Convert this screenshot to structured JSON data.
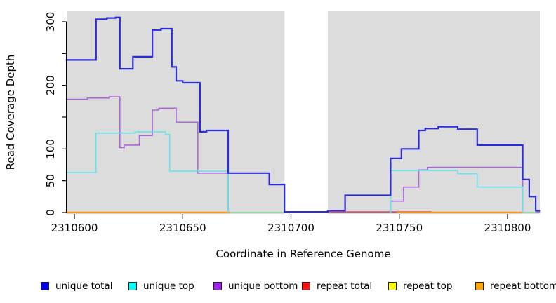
{
  "figure": {
    "x_axis_title": "Coordinate in Reference Genome",
    "y_axis_title": "Read Coverage Depth"
  },
  "chart_data": {
    "type": "line",
    "subtype": "step-function-coverage-plot",
    "title": "",
    "xlabel": "Coordinate in Reference Genome",
    "ylabel": "Read Coverage Depth",
    "xlim": [
      2310596,
      2310816
    ],
    "ylim": [
      0,
      318
    ],
    "grid": false,
    "panel_bg": "#dcdcdc",
    "axis_color": "#000000",
    "x_ticks": [
      2310600,
      2310650,
      2310700,
      2310750,
      2310800
    ],
    "x_tick_labels": [
      "2310600",
      "2310650",
      "2310700",
      "2310750",
      "2310800"
    ],
    "y_ticks": [
      0,
      50,
      100,
      150,
      200,
      250,
      300
    ],
    "y_tick_labels": [
      "0",
      "50",
      "100",
      "",
      "200",
      "",
      "300"
    ],
    "no_data_gap": {
      "from": 2310697,
      "to": 2310717
    },
    "legend": {
      "position": "bottom",
      "items": [
        {
          "label": "unique total",
          "color": "#0000ee"
        },
        {
          "label": "unique top",
          "color": "#00ffff"
        },
        {
          "label": "unique bottom",
          "color": "#a020f0"
        },
        {
          "label": "repeat total",
          "color": "#ff0f0f"
        },
        {
          "label": "repeat top",
          "color": "#ffff00"
        },
        {
          "label": "repeat bottom",
          "color": "#ffa500"
        }
      ]
    },
    "series": [
      {
        "name": "repeat total",
        "color": "#d8506a",
        "width": 1.8,
        "paths": [
          [
            [
              2310717,
              1
            ],
            [
              2310765,
              1
            ]
          ]
        ]
      },
      {
        "name": "repeat bottom",
        "color": "#ff9014",
        "width": 2.2,
        "paths": [
          [
            [
              2310596,
              0
            ],
            [
              2310672,
              0
            ]
          ],
          [
            [
              2310749,
              0
            ],
            [
              2310807,
              0
            ]
          ]
        ]
      },
      {
        "name": "repeat top overlap",
        "color": "#86d79c",
        "width": 1.8,
        "paths": [
          [
            [
              2310672,
              0
            ],
            [
              2310697,
              0
            ]
          ],
          [
            [
              2310807,
              0
            ],
            [
              2310813,
              0
            ]
          ]
        ]
      },
      {
        "name": "unique bottom",
        "color": "#ad68da",
        "width": 1.6,
        "paths": [
          [
            [
              2310596,
              178
            ],
            [
              2310606,
              180
            ],
            [
              2310616,
              182
            ],
            [
              2310621,
              102
            ],
            [
              2310623,
              106
            ],
            [
              2310630,
              121
            ],
            [
              2310636,
              161
            ],
            [
              2310639,
              164
            ],
            [
              2310647,
              142
            ],
            [
              2310657,
              62
            ],
            [
              2310671,
              0
            ]
          ],
          [
            [
              2310746,
              0
            ],
            [
              2310746,
              18
            ],
            [
              2310752,
              40
            ],
            [
              2310759,
              67
            ],
            [
              2310763,
              71
            ],
            [
              2310807,
              0
            ]
          ],
          [
            [
              2310813,
              1
            ],
            [
              2310815,
              1
            ]
          ]
        ]
      },
      {
        "name": "unique top",
        "color": "#63e6ef",
        "width": 1.6,
        "paths": [
          [
            [
              2310596,
              63
            ],
            [
              2310610,
              125
            ],
            [
              2310628,
              127
            ],
            [
              2310642,
              123
            ],
            [
              2310644,
              65
            ],
            [
              2310671,
              0
            ]
          ],
          [
            [
              2310746,
              0
            ],
            [
              2310746,
              66
            ],
            [
              2310777,
              61
            ],
            [
              2310786,
              40
            ],
            [
              2310807,
              0
            ]
          ]
        ]
      },
      {
        "name": "unique total",
        "color": "#2d2dd6",
        "width": 2.2,
        "paths": [
          [
            [
              2310596,
              240
            ],
            [
              2310610,
              304
            ],
            [
              2310615,
              306
            ],
            [
              2310619,
              307
            ],
            [
              2310621,
              226
            ],
            [
              2310627,
              245
            ],
            [
              2310636,
              287
            ],
            [
              2310640,
              289
            ],
            [
              2310645,
              229
            ],
            [
              2310647,
              207
            ],
            [
              2310650,
              204
            ],
            [
              2310658,
              127
            ],
            [
              2310661,
              129
            ],
            [
              2310671,
              62
            ],
            [
              2310690,
              44
            ],
            [
              2310697,
              1
            ],
            [
              2310717,
              3
            ],
            [
              2310725,
              27
            ],
            [
              2310746,
              85
            ],
            [
              2310751,
              100
            ],
            [
              2310759,
              129
            ],
            [
              2310762,
              132
            ],
            [
              2310768,
              135
            ],
            [
              2310777,
              131
            ],
            [
              2310786,
              106
            ],
            [
              2310807,
              52
            ],
            [
              2310810,
              25
            ],
            [
              2310813,
              3
            ],
            [
              2310815,
              3
            ]
          ]
        ]
      }
    ]
  }
}
